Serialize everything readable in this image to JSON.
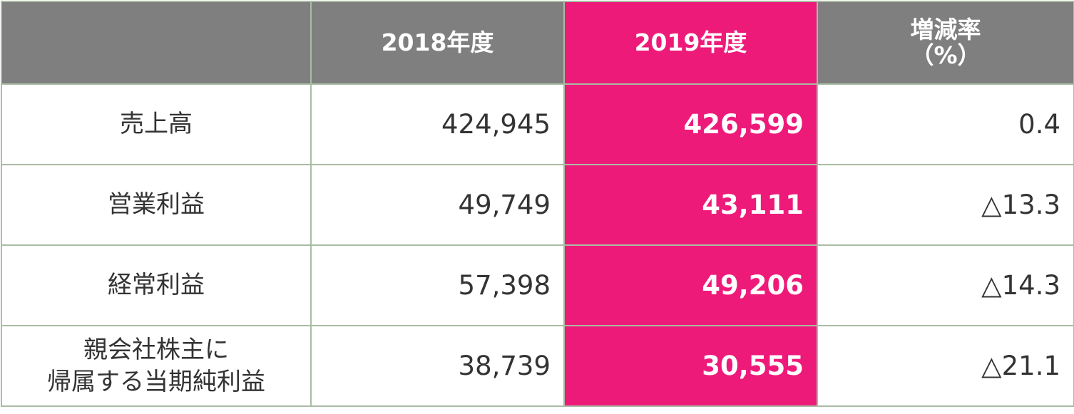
{
  "table": {
    "columns": [
      [
        "2018年度"
      ],
      [
        "2019年度"
      ],
      [
        "増減率",
        "（%）"
      ]
    ],
    "rows": [
      {
        "label": [
          "売上高"
        ],
        "cells": [
          "424,945",
          "426,599",
          "0.4"
        ]
      },
      {
        "label": [
          "営業利益"
        ],
        "cells": [
          "49,749",
          "43,111",
          "△13.3"
        ]
      },
      {
        "label": [
          "経常利益"
        ],
        "cells": [
          "57,398",
          "49,206",
          "△14.3"
        ]
      },
      {
        "label": [
          "親会社株主に",
          "帰属する当期純利益"
        ],
        "cells": [
          "38,739",
          "30,555",
          "△21.1"
        ]
      }
    ]
  }
}
